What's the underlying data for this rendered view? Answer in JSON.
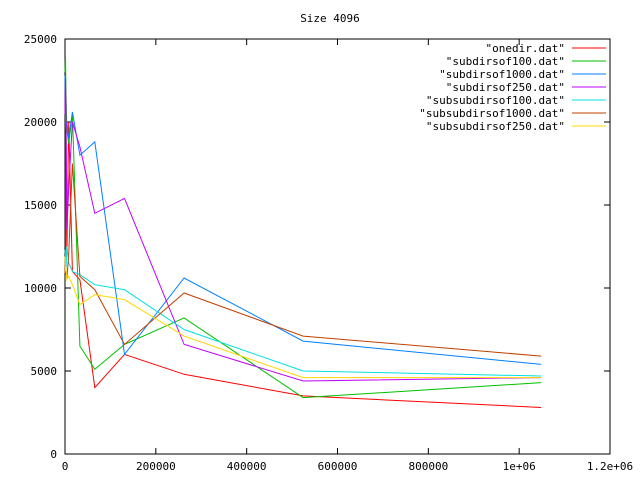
{
  "chart_data": {
    "type": "line",
    "title": "Size 4096",
    "xlabel": "",
    "ylabel": "",
    "xlim": [
      0,
      1200000
    ],
    "ylim": [
      0,
      25000
    ],
    "x_tick_labels": [
      {
        "value": 0,
        "label": "0"
      },
      {
        "value": 200000,
        "label": "200000"
      },
      {
        "value": 400000,
        "label": "400000"
      },
      {
        "value": 600000,
        "label": "600000"
      },
      {
        "value": 800000,
        "label": "800000"
      },
      {
        "value": 1000000,
        "label": "1e+06"
      },
      {
        "value": 1200000,
        "label": "1.2e+06"
      }
    ],
    "y_tick_labels": [
      {
        "value": 0,
        "label": "0"
      },
      {
        "value": 5000,
        "label": "5000"
      },
      {
        "value": 10000,
        "label": "10000"
      },
      {
        "value": 15000,
        "label": "15000"
      },
      {
        "value": 20000,
        "label": "20000"
      },
      {
        "value": 25000,
        "label": "25000"
      }
    ],
    "grid": false,
    "legend_position": "top-right",
    "series": [
      {
        "name": "\"onedir.dat\"",
        "color": "#ff0000",
        "points": [
          [
            0,
            11500
          ],
          [
            1024,
            11200
          ],
          [
            2048,
            20500
          ],
          [
            4096,
            12000
          ],
          [
            8192,
            20000
          ],
          [
            16384,
            11000
          ],
          [
            32768,
            10500
          ],
          [
            65536,
            4000
          ],
          [
            131072,
            6000
          ],
          [
            262144,
            4800
          ],
          [
            524288,
            3500
          ],
          [
            1048576,
            2800
          ]
        ]
      },
      {
        "name": "\"subdirsof100.dat\"",
        "color": "#00c000",
        "points": [
          [
            0,
            23000
          ],
          [
            1024,
            24000
          ],
          [
            2048,
            22000
          ],
          [
            4096,
            19500
          ],
          [
            8192,
            18700
          ],
          [
            16384,
            20500
          ],
          [
            32768,
            6500
          ],
          [
            65536,
            5100
          ],
          [
            131072,
            6600
          ],
          [
            262144,
            8200
          ],
          [
            524288,
            3400
          ],
          [
            1048576,
            4300
          ]
        ]
      },
      {
        "name": "\"subdirsof1000.dat\"",
        "color": "#0080ff",
        "points": [
          [
            0,
            22800
          ],
          [
            1024,
            20000
          ],
          [
            2048,
            19500
          ],
          [
            4096,
            20000
          ],
          [
            8192,
            19000
          ],
          [
            16384,
            20600
          ],
          [
            32768,
            18000
          ],
          [
            65536,
            18800
          ],
          [
            131072,
            6000
          ],
          [
            262144,
            10600
          ],
          [
            524288,
            6800
          ],
          [
            1048576,
            5400
          ]
        ]
      },
      {
        "name": "\"subdirsof250.dat\"",
        "color": "#c000ff",
        "points": [
          [
            0,
            20500
          ],
          [
            1024,
            22700
          ],
          [
            2048,
            21000
          ],
          [
            4096,
            13500
          ],
          [
            8192,
            16000
          ],
          [
            16384,
            20000
          ],
          [
            32768,
            18500
          ],
          [
            65536,
            14500
          ],
          [
            131072,
            15400
          ],
          [
            262144,
            6600
          ],
          [
            524288,
            4400
          ],
          [
            1048576,
            4600
          ]
        ]
      },
      {
        "name": "\"subsubdirsof100.dat\"",
        "color": "#00e0e0",
        "points": [
          [
            0,
            12300
          ],
          [
            1024,
            12000
          ],
          [
            2048,
            11000
          ],
          [
            4096,
            12500
          ],
          [
            8192,
            11500
          ],
          [
            16384,
            11000
          ],
          [
            32768,
            10800
          ],
          [
            65536,
            10200
          ],
          [
            131072,
            9900
          ],
          [
            262144,
            7500
          ],
          [
            524288,
            5000
          ],
          [
            1048576,
            4700
          ]
        ]
      },
      {
        "name": "\"subsubdirsof1000.dat\"",
        "color": "#c04000",
        "points": [
          [
            0,
            10900
          ],
          [
            1024,
            11400
          ],
          [
            2048,
            11000
          ],
          [
            4096,
            10600
          ],
          [
            8192,
            12000
          ],
          [
            16384,
            17500
          ],
          [
            32768,
            10700
          ],
          [
            65536,
            9900
          ],
          [
            131072,
            6600
          ],
          [
            262144,
            9700
          ],
          [
            524288,
            7100
          ],
          [
            1048576,
            5900
          ]
        ]
      },
      {
        "name": "\"subsubdirsof250.dat\"",
        "color": "#ffd700",
        "points": [
          [
            0,
            11900
          ],
          [
            1024,
            11000
          ],
          [
            2048,
            11300
          ],
          [
            4096,
            10500
          ],
          [
            8192,
            10700
          ],
          [
            16384,
            10200
          ],
          [
            32768,
            9000
          ],
          [
            65536,
            9600
          ],
          [
            131072,
            9300
          ],
          [
            262144,
            7100
          ],
          [
            524288,
            4600
          ],
          [
            1048576,
            4600
          ]
        ]
      }
    ]
  }
}
